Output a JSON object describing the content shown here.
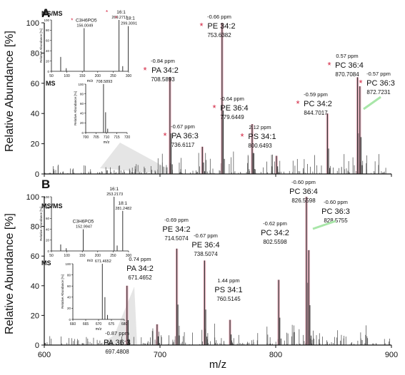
{
  "chart_data": [
    {
      "type": "mass_spectrum",
      "panel_label": "A",
      "xlabel": "m/z",
      "ylabel": "Relative Abundance [%]",
      "xlim": [
        600,
        900
      ],
      "ylim": [
        0,
        100
      ],
      "yticks": [
        "0",
        "20",
        "40",
        "60",
        "80",
        "100"
      ],
      "labeled_peaks": [
        {
          "mz": 708.5893,
          "rel": 64,
          "name": "PA 34:2",
          "ppm": "-0.84 ppm",
          "mz_text": "708.5893",
          "star": true
        },
        {
          "mz": 736.6117,
          "rel": 18,
          "name": "PA 36:3",
          "ppm": "-0.67 ppm",
          "mz_text": "736.6117",
          "star": true
        },
        {
          "mz": 753.6382,
          "rel": 100,
          "name": "PE 34:2",
          "ppm": "-0.66 ppm",
          "mz_text": "753.6382",
          "star": true
        },
        {
          "mz": 779.6449,
          "rel": 33,
          "name": "PE 36:4",
          "ppm": "-0.64 ppm",
          "mz_text": "779.6449",
          "star": true
        },
        {
          "mz": 800.6493,
          "rel": 12,
          "name": "PS 34:1",
          "ppm": "2.12 ppm",
          "mz_text": "800.6493",
          "star": true
        },
        {
          "mz": 844.7017,
          "rel": 40,
          "name": "PC 34:2",
          "ppm": "-0.59 ppm",
          "mz_text": "844.7017",
          "star": true
        },
        {
          "mz": 870.7084,
          "rel": 64,
          "name": "PC 36:4",
          "ppm": "0.57 ppm",
          "mz_text": "870.7084",
          "star": true
        },
        {
          "mz": 872.7231,
          "rel": 58,
          "name": "PC 36:3",
          "ppm": "-0.57 ppm",
          "mz_text": "872.7231",
          "star": true
        }
      ],
      "insets": [
        {
          "title": "MS/MS",
          "xlabel": "m/z",
          "ylabel": "Relative Abundance [%]",
          "xlim": [
            50,
            300
          ],
          "xticks": [
            "50",
            "100",
            "150",
            "200",
            "250",
            "300"
          ],
          "yticks": [
            "0",
            "20",
            "40",
            "60",
            "80",
            "100"
          ],
          "peaks": [
            {
              "mz": 80,
              "rel": 28
            },
            {
              "mz": 98,
              "rel": 6
            },
            {
              "mz": 156,
              "rel": 84
            },
            {
              "mz": 269,
              "rel": 100
            },
            {
              "mz": 281,
              "rel": 10
            },
            {
              "mz": 299,
              "rel": 88
            }
          ],
          "labels": [
            {
              "mz": 156,
              "rel": 84,
              "text": "C3H6PO5",
              "value": "156.0049",
              "star": true
            },
            {
              "mz": 269,
              "rel": 100,
              "text": "16:1",
              "value": "269.2711",
              "star": true
            },
            {
              "mz": 299,
              "rel": 88,
              "text": "18:1",
              "value": "299.3091",
              "star": true
            }
          ]
        },
        {
          "title": "MS",
          "xlabel": "m/z",
          "ylabel": "Relative Abundance [%]",
          "xlim": [
            700,
            720
          ],
          "xticks": [
            "700",
            "705",
            "710",
            "715",
            "720"
          ],
          "yticks": [
            "0",
            "20",
            "40",
            "60",
            "80",
            "100"
          ],
          "peaks": [
            {
              "mz": 708.59,
              "rel": 100
            },
            {
              "mz": 709.6,
              "rel": 42
            },
            {
              "mz": 710.6,
              "rel": 8
            }
          ],
          "labels": [
            {
              "mz": 708.59,
              "rel": 100,
              "text": "",
              "value": "708.5893",
              "star": false
            }
          ]
        }
      ]
    },
    {
      "type": "mass_spectrum",
      "panel_label": "B",
      "xlabel": "m/z",
      "ylabel": "Relative Abundance [%]",
      "xlim": [
        600,
        900
      ],
      "ylim": [
        0,
        100
      ],
      "xticks": [
        "600",
        "700",
        "800",
        "900"
      ],
      "yticks": [
        "0",
        "20",
        "40",
        "60",
        "80",
        "100"
      ],
      "labeled_peaks": [
        {
          "mz": 671.4652,
          "rel": 40,
          "name": "PA 34:2",
          "ppm": "0.74 ppm",
          "mz_text": "671.4652",
          "star": false
        },
        {
          "mz": 697.4808,
          "rel": 14,
          "name": "PA 36:3",
          "ppm": "-0.87 ppm",
          "mz_text": "697.4808",
          "star": false
        },
        {
          "mz": 714.5074,
          "rel": 65,
          "name": "PE 34:2",
          "ppm": "-0.69 ppm",
          "mz_text": "714.5074",
          "star": false
        },
        {
          "mz": 738.5074,
          "rel": 57,
          "name": "PE 36:4",
          "ppm": "-0.67 ppm",
          "mz_text": "738.5074",
          "star": false
        },
        {
          "mz": 760.5145,
          "rel": 17,
          "name": "PS 34:1",
          "ppm": "1.44 ppm",
          "mz_text": "760.5145",
          "star": false
        },
        {
          "mz": 802.5598,
          "rel": 44,
          "name": "PC 34:2",
          "ppm": "-0.62 ppm",
          "mz_text": "802.5598",
          "star": false
        },
        {
          "mz": 826.5598,
          "rel": 100,
          "name": "PC 36:4",
          "ppm": "-0.60 ppm",
          "mz_text": "826.5598",
          "star": false
        },
        {
          "mz": 828.5755,
          "rel": 64,
          "name": "PC 36:3",
          "ppm": "-0.60 ppm",
          "mz_text": "828.5755",
          "star": false
        }
      ],
      "insets": [
        {
          "title": "MS/MS",
          "xlabel": "m/z",
          "ylabel": "Relative Abundance [%]",
          "xlim": [
            50,
            300
          ],
          "xticks": [
            "50",
            "100",
            "150",
            "200",
            "250",
            "300"
          ],
          "yticks": [
            "0",
            "20",
            "40",
            "60",
            "80",
            "100"
          ],
          "peaks": [
            {
              "mz": 80,
              "rel": 12
            },
            {
              "mz": 98,
              "rel": 5
            },
            {
              "mz": 153,
              "rel": 40
            },
            {
              "mz": 253,
              "rel": 100
            },
            {
              "mz": 263,
              "rel": 10
            },
            {
              "mz": 281,
              "rel": 74
            }
          ],
          "labels": [
            {
              "mz": 153,
              "rel": 40,
              "text": "C3H6PO5",
              "value": "152.9947",
              "star": false
            },
            {
              "mz": 253,
              "rel": 100,
              "text": "16:1",
              "value": "253.2173",
              "star": false
            },
            {
              "mz": 281,
              "rel": 74,
              "text": "18:1",
              "value": "281.2482",
              "star": false
            }
          ]
        },
        {
          "title": "MS",
          "xlabel": "m/z",
          "ylabel": "Relative Abundance [%]",
          "xlim": [
            660,
            680
          ],
          "xticks": [
            "660",
            "665",
            "670",
            "675",
            "680"
          ],
          "yticks": [
            "0",
            "20",
            "40",
            "60",
            "80",
            "100"
          ],
          "peaks": [
            {
              "mz": 671.47,
              "rel": 100
            },
            {
              "mz": 672.47,
              "rel": 40
            },
            {
              "mz": 673.48,
              "rel": 8
            }
          ],
          "labels": [
            {
              "mz": 671.47,
              "rel": 100,
              "text": "",
              "value": "671.4652",
              "star": false
            }
          ]
        }
      ]
    }
  ],
  "colors": {
    "axis": "#111111",
    "peak": "#5a5a5a",
    "highlight": "#e7a1b3",
    "star": "#d21f3c",
    "callout": "#cfcfcf",
    "leader": "#a8e6a8"
  }
}
